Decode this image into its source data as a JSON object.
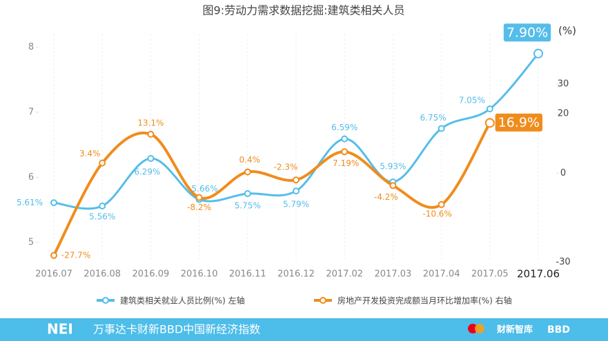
{
  "chart_data": {
    "type": "line",
    "title": "图9:劳动力需求数据挖掘:建筑类相关人员",
    "y2_unit": "(%)",
    "categories": [
      "2016.07",
      "2016.08",
      "2016.09",
      "2016.10",
      "2016.11",
      "2016.12",
      "2017.02",
      "2017.03",
      "2017.04",
      "2017.05",
      "2017.06"
    ],
    "series": [
      {
        "name": "建筑类相关就业人员比例(%) 左轴",
        "color": "#55bde9",
        "axis": "y",
        "values": [
          5.61,
          5.56,
          6.29,
          5.66,
          5.75,
          5.79,
          6.59,
          5.93,
          6.75,
          7.05,
          7.9
        ],
        "value_labels": [
          "5.61%",
          "5.56%",
          "6.29%",
          "5.66%",
          "5.75%",
          "5.79%",
          "6.59%",
          "5.93%",
          "6.75%",
          "7.05%",
          "7.90%"
        ]
      },
      {
        "name": "房地产开发投资完成额当月环比增加率(%) 右轴",
        "color": "#f08c1c",
        "axis": "y2",
        "values": [
          -27.7,
          3.4,
          13.1,
          -8.2,
          0.4,
          -2.3,
          7.19,
          -4.2,
          -10.6,
          16.9,
          null
        ],
        "value_labels": [
          "-27.7%",
          "3.4%",
          "13.1%",
          "-8.2%",
          "0.4%",
          "-2.3%",
          "7.19%",
          "-4.2%",
          "-10.6%",
          "16.9%",
          null
        ]
      }
    ],
    "ylim": [
      4.65,
      8.3
    ],
    "yticks": [
      5,
      6,
      7,
      8
    ],
    "y2lim": [
      -31,
      49
    ],
    "y2ticks": [
      -30,
      0,
      20,
      30
    ],
    "footer": {
      "logo": "NEI",
      "text": "万事达卡财新BBD中国新经济指数",
      "brand1": "财新智库",
      "brand2": "BBD"
    }
  }
}
